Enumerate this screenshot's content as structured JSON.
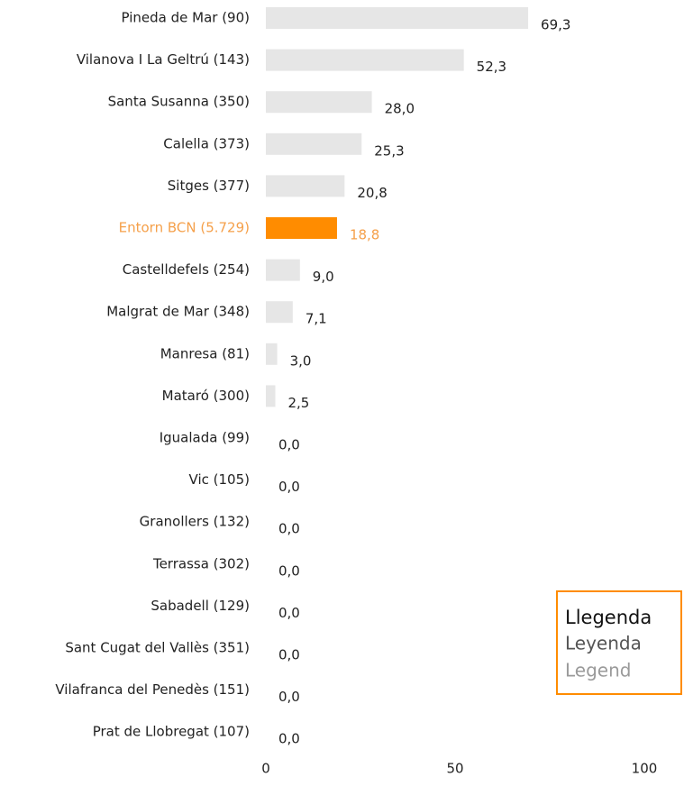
{
  "chart_data": {
    "type": "barh",
    "categories": [
      "Pineda de Mar (90)",
      "Vilanova I La Geltrú (143)",
      "Santa Susanna (350)",
      "Calella (373)",
      "Sitges (377)",
      "Entorn BCN (5.729)",
      "Castelldefels (254)",
      "Malgrat de Mar (348)",
      "Manresa (81)",
      "Mataró (300)",
      "Igualada (99)",
      "Vic (105)",
      "Granollers (132)",
      "Terrassa (302)",
      "Sabadell (129)",
      "Sant Cugat del Vallès (351)",
      "Vilafranca del Penedès (151)",
      "Prat de Llobregat (107)"
    ],
    "values": [
      69.3,
      52.3,
      28.0,
      25.3,
      20.8,
      18.8,
      9.0,
      7.1,
      3.0,
      2.5,
      0.0,
      0.0,
      0.0,
      0.0,
      0.0,
      0.0,
      0.0,
      0.0
    ],
    "value_labels": [
      "69,3",
      "52,3",
      "28,0",
      "25,3",
      "20,8",
      "18,8",
      "9,0",
      "7,1",
      "3,0",
      "2,5",
      "0,0",
      "0,0",
      "0,0",
      "0,0",
      "0,0",
      "0,0",
      "0,0",
      "0,0"
    ],
    "colors": [
      "#e6e6e6",
      "#e6e6e6",
      "#e6e6e6",
      "#e6e6e6",
      "#e6e6e6",
      "#ff8c00",
      "#e6e6e6",
      "#e6e6e6",
      "#e6e6e6",
      "#e6e6e6",
      "#e6e6e6",
      "#e6e6e6",
      "#e6e6e6",
      "#e6e6e6",
      "#e6e6e6",
      "#e6e6e6",
      "#e6e6e6",
      "#e6e6e6"
    ],
    "label_colors": [
      "#222",
      "#222",
      "#222",
      "#222",
      "#222",
      "#f5a04a",
      "#222",
      "#222",
      "#222",
      "#222",
      "#222",
      "#222",
      "#222",
      "#222",
      "#222",
      "#222",
      "#222",
      "#222"
    ],
    "xlim": [
      0,
      100
    ],
    "xticks": [
      0,
      50,
      100
    ],
    "legend": [
      "Llegenda",
      "Leyenda",
      "Legend"
    ]
  }
}
